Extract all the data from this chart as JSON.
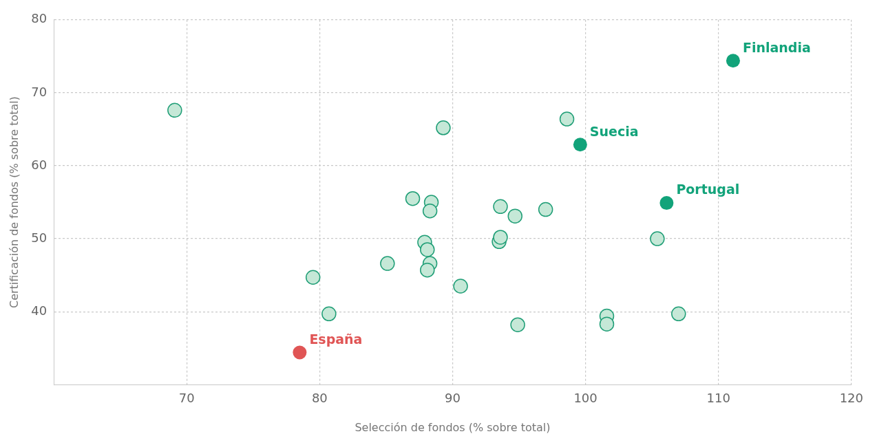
{
  "chart_data": {
    "type": "scatter",
    "xlabel": "Selección de fondos (% sobre total)",
    "ylabel": "Certificación de fondos (% sobre total)",
    "xlim": [
      60,
      120
    ],
    "xticks": [
      70,
      80,
      90,
      100,
      110,
      120
    ],
    "ylim": [
      30,
      80
    ],
    "yticks": [
      40,
      50,
      60,
      70,
      80
    ],
    "grid": true,
    "legend": false,
    "marker": "circle",
    "series": [
      {
        "color": "#c5e8d7",
        "x": [
          69.1,
          79.5,
          80.7,
          85.1,
          87.0,
          88.4,
          88.3,
          89.3,
          87.9,
          88.1,
          88.3,
          88.1,
          90.6,
          93.6,
          93.5,
          93.6,
          94.7,
          97.0,
          94.9,
          98.6,
          105.4,
          101.6,
          101.6,
          107.0
        ],
        "values": [
          67.6,
          44.7,
          39.7,
          46.6,
          55.5,
          55.0,
          53.8,
          65.2,
          49.5,
          48.5,
          46.6,
          45.7,
          43.5,
          54.4,
          49.6,
          50.2,
          53.1,
          54.0,
          38.2,
          66.4,
          50.0,
          39.4,
          38.3,
          39.7
        ]
      },
      {
        "name": "Finlandia",
        "color": "#12a37a",
        "x": [
          111.1
        ],
        "values": [
          74.4
        ]
      },
      {
        "name": "Suecia",
        "color": "#12a37a",
        "x": [
          99.6
        ],
        "values": [
          62.9
        ]
      },
      {
        "name": "Portugal",
        "color": "#12a37a",
        "x": [
          106.1
        ],
        "values": [
          54.9
        ]
      },
      {
        "name": "España",
        "color": "#e05555",
        "x": [
          78.5
        ],
        "values": [
          34.4
        ]
      }
    ]
  }
}
